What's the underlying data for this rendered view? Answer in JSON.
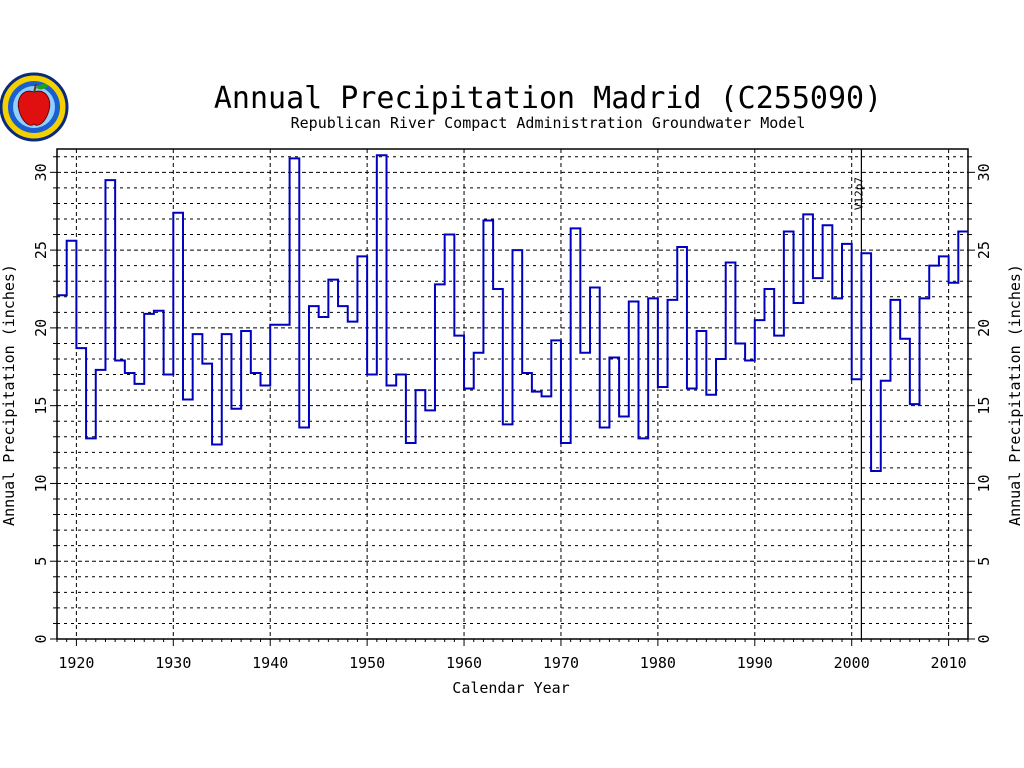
{
  "chart_data": {
    "type": "line",
    "step": true,
    "title": "Annual Precipitation Madrid (C255090)",
    "subtitle": "Republican River Compact Administration Groundwater Model",
    "xlabel": "Calendar Year",
    "ylabel": "Annual Precipitation (inches)",
    "ylabel_right": "Annual Precipitation (inches)",
    "xlim": [
      1918,
      2012
    ],
    "ylim": [
      0,
      31.5
    ],
    "x_ticks": [
      1920,
      1930,
      1940,
      1950,
      1960,
      1970,
      1980,
      1990,
      2000,
      2010
    ],
    "y_ticks": [
      0,
      5,
      10,
      15,
      20,
      25,
      30
    ],
    "grid": true,
    "line_color": "#0000c0",
    "marker_line": {
      "x": 2001,
      "label": "V12p7"
    },
    "series": [
      {
        "x": [
          1918,
          1919,
          1920,
          1921,
          1922,
          1923,
          1924,
          1925,
          1926,
          1927,
          1928,
          1929,
          1930,
          1931,
          1932,
          1933,
          1934,
          1935,
          1936,
          1937,
          1938,
          1939,
          1940,
          1941,
          1942,
          1943,
          1944,
          1945,
          1946,
          1947,
          1948,
          1949,
          1950,
          1951,
          1952,
          1953,
          1954,
          1955,
          1956,
          1957,
          1958,
          1959,
          1960,
          1961,
          1962,
          1963,
          1964,
          1965,
          1966,
          1967,
          1968,
          1969,
          1970,
          1971,
          1972,
          1973,
          1974,
          1975,
          1976,
          1977,
          1978,
          1979,
          1980,
          1981,
          1982,
          1983,
          1984,
          1985,
          1986,
          1987,
          1988,
          1989,
          1990,
          1991,
          1992,
          1993,
          1994,
          1995,
          1996,
          1997,
          1998,
          1999,
          2000,
          2001,
          2002,
          2003,
          2004,
          2005,
          2006,
          2007,
          2008,
          2009,
          2010,
          2011
        ],
        "values": [
          22.1,
          25.6,
          18.7,
          12.9,
          17.3,
          29.5,
          17.9,
          17.1,
          16.4,
          20.9,
          21.1,
          17.0,
          27.4,
          15.4,
          19.6,
          17.7,
          12.5,
          19.6,
          14.8,
          19.8,
          17.1,
          16.3,
          20.2,
          20.2,
          30.9,
          13.6,
          21.4,
          20.7,
          23.1,
          21.4,
          20.4,
          24.6,
          17.0,
          31.1,
          16.3,
          17.0,
          12.6,
          16.0,
          14.7,
          22.8,
          26.0,
          19.5,
          16.1,
          18.4,
          26.9,
          22.5,
          13.8,
          25.0,
          17.1,
          15.9,
          15.6,
          19.2,
          12.6,
          26.4,
          18.4,
          22.6,
          13.6,
          18.1,
          14.3,
          21.7,
          12.9,
          21.9,
          16.2,
          21.8,
          25.2,
          16.1,
          19.8,
          15.7,
          18.0,
          24.2,
          19.0,
          17.9,
          20.5,
          22.5,
          19.5,
          26.2,
          21.6,
          27.3,
          23.2,
          26.6,
          21.9,
          25.4,
          16.7,
          24.8,
          10.8,
          16.6,
          21.8,
          19.3,
          15.1,
          21.9,
          24.0,
          24.6,
          22.9,
          26.2
        ]
      }
    ]
  },
  "logo": {
    "name": "seal-apple-logo"
  }
}
